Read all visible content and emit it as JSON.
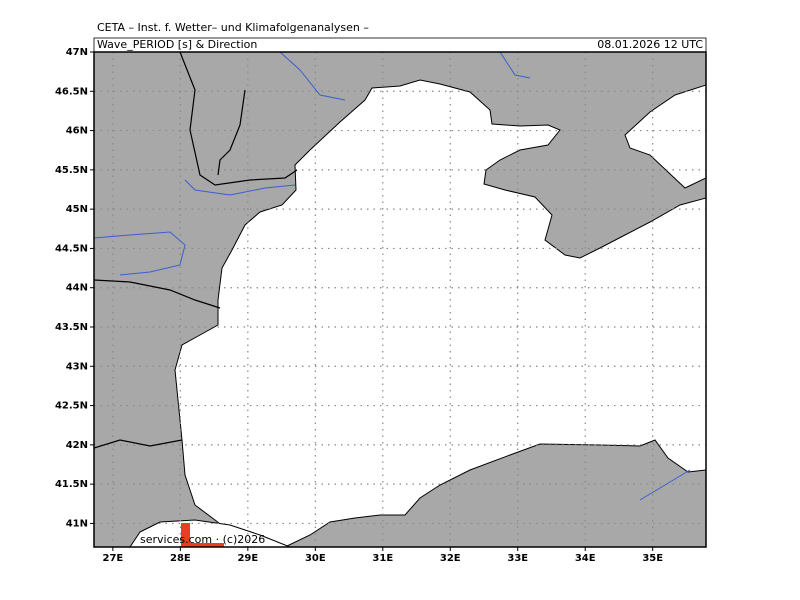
{
  "header": {
    "institute": "CETA – Inst. f. Wetter– und Klimafolgenanalysen –",
    "parameter": "Wave_PERIOD [s] & Direction",
    "valid_time": "08.01.2026 12 UTC"
  },
  "map": {
    "xlim": [
      26.72,
      35.79
    ],
    "ylim": [
      40.7,
      47
    ],
    "xticks": [
      {
        "value": 27,
        "label": "27E"
      },
      {
        "value": 28,
        "label": "28E"
      },
      {
        "value": 29,
        "label": "29E"
      },
      {
        "value": 30,
        "label": "30E"
      },
      {
        "value": 31,
        "label": "31E"
      },
      {
        "value": 32,
        "label": "32E"
      },
      {
        "value": 33,
        "label": "33E"
      },
      {
        "value": 34,
        "label": "34E"
      },
      {
        "value": 35,
        "label": "35E"
      }
    ],
    "yticks": [
      {
        "value": 41,
        "label": "41N"
      },
      {
        "value": 41.5,
        "label": "41.5N"
      },
      {
        "value": 42,
        "label": "42N"
      },
      {
        "value": 42.5,
        "label": "42.5N"
      },
      {
        "value": 43,
        "label": "43N"
      },
      {
        "value": 43.5,
        "label": "43.5N"
      },
      {
        "value": 44,
        "label": "44N"
      },
      {
        "value": 44.5,
        "label": "44.5N"
      },
      {
        "value": 45,
        "label": "45N"
      },
      {
        "value": 45.5,
        "label": "45.5N"
      },
      {
        "value": 46,
        "label": "46N"
      },
      {
        "value": 46.5,
        "label": "46.5N"
      },
      {
        "value": 47,
        "label": "47N"
      }
    ]
  },
  "footer": {
    "credit": "services.com · (c)2026"
  }
}
